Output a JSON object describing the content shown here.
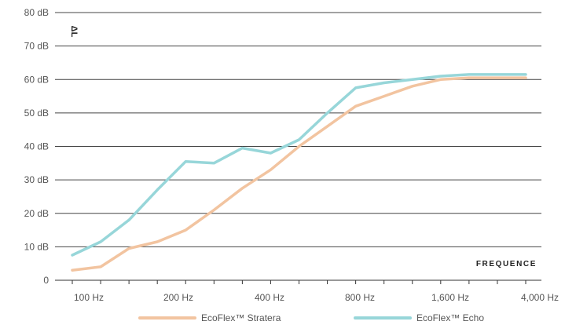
{
  "chart_data": {
    "type": "line",
    "ylabel": "ΔL",
    "xlabel": "FREQUENCE",
    "yticks": [
      "0",
      "10 dB",
      "20 dB",
      "30 dB",
      "40 dB",
      "50 dB",
      "60 dB",
      "70 dB",
      "80 dB"
    ],
    "ylim": [
      0,
      80
    ],
    "xticks": [
      "100 Hz",
      "200 Hz",
      "400 Hz",
      "800 Hz",
      "1,600 Hz",
      "4,000 Hz"
    ],
    "x": [
      "100 Hz",
      "125 Hz",
      "160 Hz",
      "200 Hz",
      "250 Hz",
      "315 Hz",
      "400 Hz",
      "500 Hz",
      "630 Hz",
      "800 Hz",
      "1,000 Hz",
      "1,250 Hz",
      "1,600 Hz",
      "2,000 Hz",
      "2,500 Hz",
      "3,150 Hz",
      "4,000 Hz"
    ],
    "grid": "horizontal",
    "legend_position": "bottom",
    "series": [
      {
        "name": "EcoFlex™ Stratera",
        "color": "#f2c4a0",
        "values": [
          3,
          4,
          9.5,
          11.5,
          15,
          21,
          27.5,
          33,
          40,
          46,
          52,
          55,
          58,
          60,
          60.5,
          60.5,
          60.5
        ]
      },
      {
        "name": "EcoFlex™ Echo",
        "color": "#97d6d9",
        "values": [
          7.5,
          11.5,
          18,
          27,
          35.5,
          35,
          39.5,
          38,
          42,
          50,
          57.5,
          59,
          60,
          61,
          61.5,
          61.5,
          61.5
        ]
      }
    ]
  }
}
